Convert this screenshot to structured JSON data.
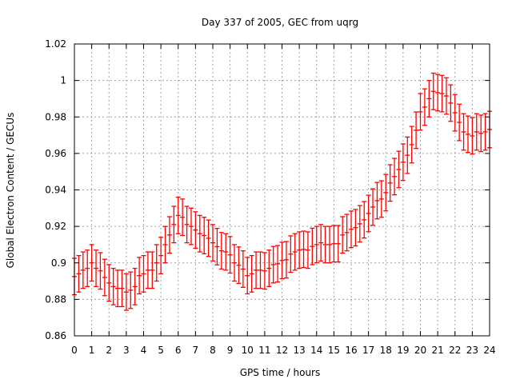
{
  "chart_data": {
    "type": "line",
    "title": "Day 337 of 2005, GEC from uqrg",
    "xlabel": "GPS time / hours",
    "ylabel": "Global Electron Content / GECUs",
    "xlim": [
      0,
      24
    ],
    "ylim": [
      0.86,
      1.02
    ],
    "xticks": [
      0,
      1,
      2,
      3,
      4,
      5,
      6,
      7,
      8,
      9,
      10,
      11,
      12,
      13,
      14,
      15,
      16,
      17,
      18,
      19,
      20,
      21,
      22,
      23,
      24
    ],
    "yticks": [
      0.86,
      0.88,
      0.9,
      0.92,
      0.94,
      0.96,
      0.98,
      1,
      1.02
    ],
    "ytick_labels": [
      "0.86",
      "0.88",
      "0.9",
      "0.92",
      "0.94",
      "0.96",
      "0.98",
      "1",
      "1.02"
    ],
    "grid": true,
    "x_step_hours": 0.25,
    "error_halfwidth": 0.01,
    "series": [
      {
        "name": "GEC",
        "color": "#ff0000",
        "style": "errorbars",
        "values": [
          0.8925,
          0.894,
          0.896,
          0.897,
          0.9,
          0.897,
          0.8956,
          0.892,
          0.889,
          0.887,
          0.886,
          0.886,
          0.884,
          0.885,
          0.887,
          0.893,
          0.894,
          0.896,
          0.896,
          0.9,
          0.904,
          0.91,
          0.9153,
          0.921,
          0.926,
          0.925,
          0.921,
          0.92,
          0.918,
          0.916,
          0.915,
          0.9135,
          0.911,
          0.9089,
          0.9066,
          0.906,
          0.9044,
          0.9,
          0.8987,
          0.8966,
          0.893,
          0.894,
          0.896,
          0.896,
          0.8956,
          0.897,
          0.899,
          0.8995,
          0.9013,
          0.9017,
          0.9048,
          0.906,
          0.907,
          0.9074,
          0.907,
          0.909,
          0.91,
          0.911,
          0.91,
          0.91,
          0.9105,
          0.9105,
          0.9153,
          0.9166,
          0.9184,
          0.9193,
          0.9214,
          0.9236,
          0.9271,
          0.9306,
          0.9341,
          0.935,
          0.9385,
          0.9438,
          0.9473,
          0.9512,
          0.9552,
          0.959,
          0.9648,
          0.9727,
          0.9828,
          0.9854,
          0.99,
          0.994,
          0.9933,
          0.9928,
          0.9915,
          0.9876,
          0.9823,
          0.977,
          0.9718,
          0.9705,
          0.9696,
          0.9718,
          0.971,
          0.9718,
          0.9731
        ]
      }
    ]
  }
}
